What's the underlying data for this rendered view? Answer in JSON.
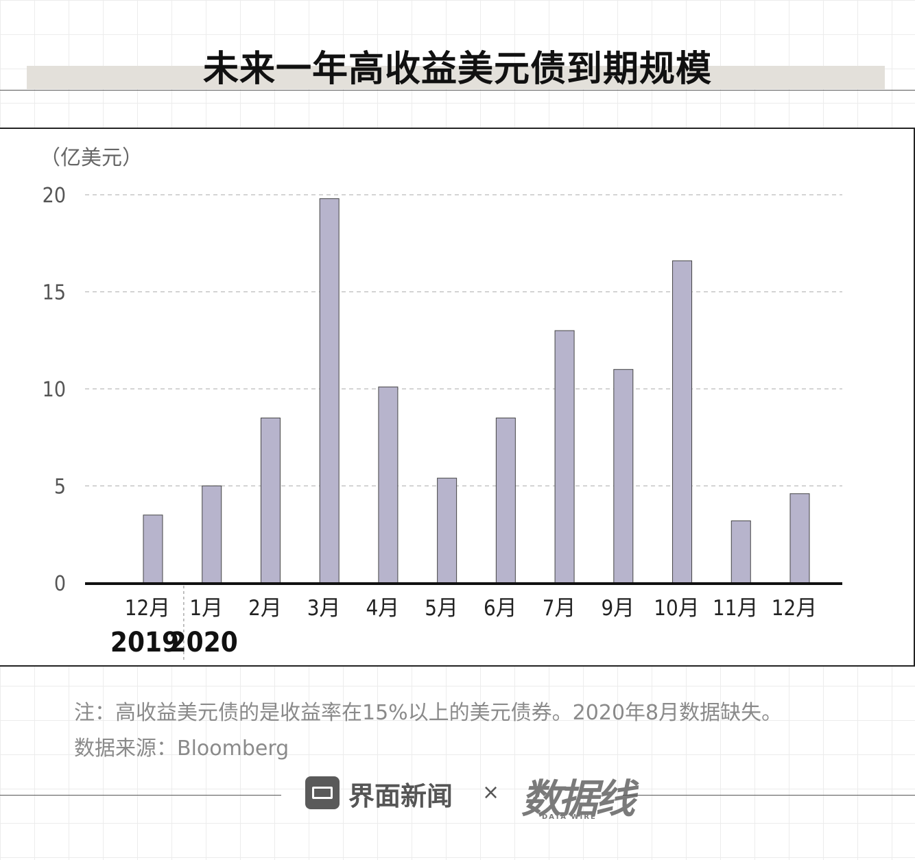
{
  "title": "未来一年高收益美元债到期规模",
  "note": "注：高收益美元债的是收益率在15%以上的美元债券。2020年8月数据缺失。",
  "source": "数据来源：Bloomberg",
  "footer": {
    "brand_left": "界面新闻",
    "times": "×",
    "brand_right": "数据线",
    "brand_right_sub": "DATA WIRE",
    "watermark": "数据线"
  },
  "colors": {
    "bar": "#b7b4cc",
    "bar_stroke": "#444444",
    "title_band": "#e3e0da",
    "grid": "#bbbbbb"
  },
  "chart_data": {
    "type": "bar",
    "unit_label": "（亿美元）",
    "categories": [
      "12月",
      "1月",
      "2月",
      "3月",
      "4月",
      "5月",
      "6月",
      "7月",
      "9月",
      "10月",
      "11月",
      "12月"
    ],
    "year_labels": [
      {
        "label": "2019",
        "from_index": 0
      },
      {
        "label": "2020",
        "from_index": 1
      }
    ],
    "values": [
      3.5,
      5.0,
      8.5,
      19.8,
      10.1,
      5.4,
      8.5,
      13.0,
      11.0,
      16.6,
      3.2,
      4.6
    ],
    "ylim": [
      0,
      20
    ],
    "yticks": [
      0,
      5,
      10,
      15,
      20
    ],
    "grid": true
  }
}
